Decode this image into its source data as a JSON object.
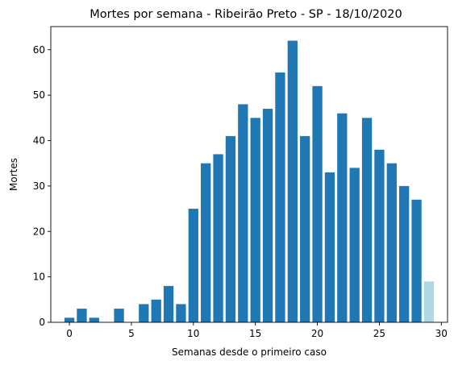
{
  "chart_data": {
    "type": "bar",
    "title": "Mortes por semana - Ribeirão Preto - SP - 18/10/2020",
    "xlabel": "Semanas desde o primeiro caso",
    "ylabel": "Mortes",
    "x": [
      0,
      1,
      2,
      3,
      4,
      5,
      6,
      7,
      8,
      9,
      10,
      11,
      12,
      13,
      14,
      15,
      16,
      17,
      18,
      19,
      20,
      21,
      22,
      23,
      24,
      25,
      26,
      27,
      28,
      29
    ],
    "values": [
      1,
      3,
      1,
      0,
      3,
      0,
      4,
      5,
      8,
      4,
      25,
      35,
      37,
      41,
      48,
      45,
      47,
      55,
      62,
      41,
      52,
      33,
      46,
      34,
      45,
      38,
      35,
      30,
      27,
      9
    ],
    "colors": [
      "#1f77b4",
      "#1f77b4",
      "#1f77b4",
      "#1f77b4",
      "#1f77b4",
      "#1f77b4",
      "#1f77b4",
      "#1f77b4",
      "#1f77b4",
      "#1f77b4",
      "#1f77b4",
      "#1f77b4",
      "#1f77b4",
      "#1f77b4",
      "#1f77b4",
      "#1f77b4",
      "#1f77b4",
      "#1f77b4",
      "#1f77b4",
      "#1f77b4",
      "#1f77b4",
      "#1f77b4",
      "#1f77b4",
      "#1f77b4",
      "#1f77b4",
      "#1f77b4",
      "#1f77b4",
      "#1f77b4",
      "#1f77b4",
      "#add8e6"
    ],
    "xlim": [
      -1.5,
      30.5
    ],
    "ylim": [
      0,
      65.1
    ],
    "xticks": [
      0,
      5,
      10,
      15,
      20,
      25,
      30
    ],
    "yticks": [
      0,
      10,
      20,
      30,
      40,
      50,
      60
    ],
    "grid": false
  }
}
